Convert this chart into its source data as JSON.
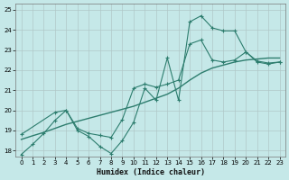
{
  "xlabel": "Humidex (Indice chaleur)",
  "xlim": [
    -0.5,
    23.5
  ],
  "ylim": [
    17.7,
    25.3
  ],
  "xticks": [
    0,
    1,
    2,
    3,
    4,
    5,
    6,
    7,
    8,
    9,
    10,
    11,
    12,
    13,
    14,
    15,
    16,
    17,
    18,
    19,
    20,
    21,
    22,
    23
  ],
  "yticks": [
    18,
    19,
    20,
    21,
    22,
    23,
    24,
    25
  ],
  "bg_color": "#c5e8e8",
  "grid_color": "#b0c8c8",
  "line_color": "#2d7d6e",
  "line1_x": [
    0,
    1,
    2,
    3,
    4,
    5,
    6,
    7,
    8,
    9,
    10,
    11,
    12,
    13,
    14,
    15,
    16,
    17,
    18,
    19,
    20,
    21,
    22,
    23
  ],
  "line1_y": [
    17.8,
    18.3,
    18.85,
    19.5,
    20.0,
    19.0,
    18.7,
    18.2,
    17.85,
    18.5,
    19.4,
    21.1,
    20.5,
    22.6,
    20.5,
    24.4,
    24.7,
    24.1,
    23.95,
    23.95,
    22.9,
    22.4,
    22.3,
    22.4
  ],
  "line2_x": [
    0,
    1,
    2,
    3,
    4,
    5,
    6,
    7,
    8,
    9,
    10,
    11,
    12,
    13,
    14,
    15,
    16,
    17,
    18,
    19,
    20,
    21,
    22,
    23
  ],
  "line2_y": [
    18.55,
    18.73,
    18.9,
    19.1,
    19.3,
    19.45,
    19.6,
    19.75,
    19.9,
    20.05,
    20.2,
    20.4,
    20.6,
    20.8,
    21.1,
    21.5,
    21.85,
    22.1,
    22.25,
    22.4,
    22.5,
    22.55,
    22.6,
    22.6
  ],
  "line3_x": [
    0,
    3,
    4,
    5,
    6,
    7,
    8,
    9,
    10,
    11,
    12,
    13,
    14,
    15,
    16,
    17,
    18,
    19,
    20,
    21,
    22,
    23
  ],
  "line3_y": [
    18.8,
    19.9,
    20.0,
    19.1,
    18.85,
    18.75,
    18.65,
    19.55,
    21.1,
    21.3,
    21.15,
    21.3,
    21.5,
    23.3,
    23.5,
    22.5,
    22.4,
    22.5,
    22.9,
    22.45,
    22.35,
    22.4
  ]
}
